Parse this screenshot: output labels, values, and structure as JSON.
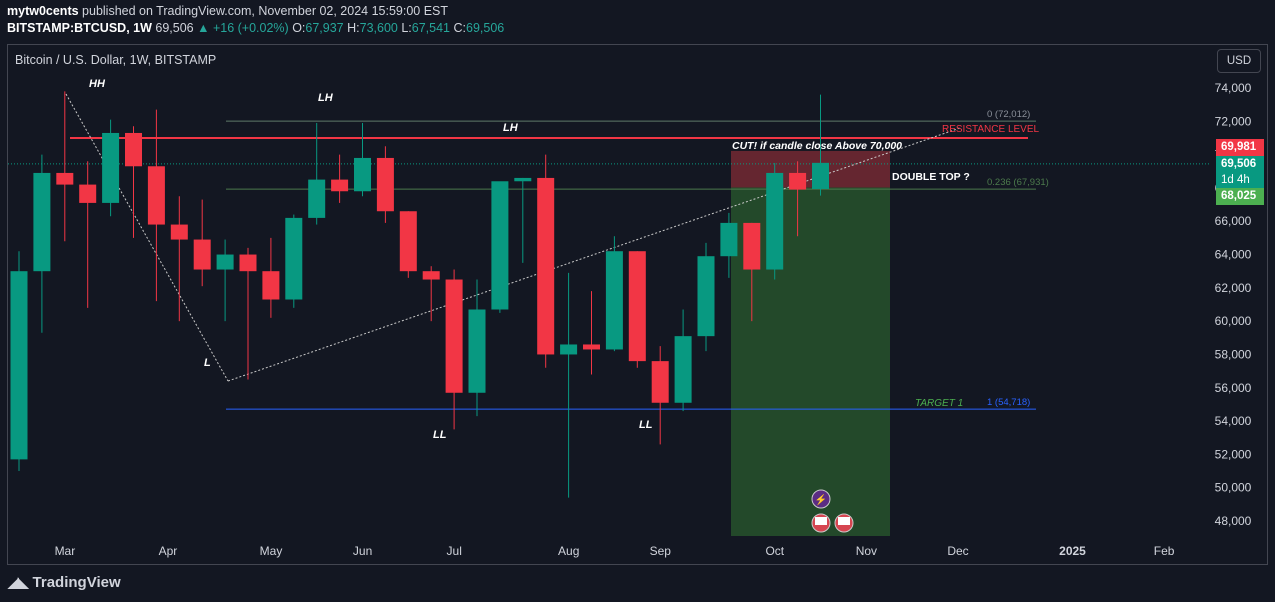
{
  "header": {
    "author": "mytw0cents",
    "published_text": "published on TradingView.com, November 02, 2024 15:59:00 EST",
    "symbol": "BITSTAMP:BTCUSD, 1W",
    "last": "69,506",
    "change": "+16 (+0.02%)",
    "o_label": "O:",
    "o": "67,937",
    "h_label": "H:",
    "h": "73,600",
    "l_label": "L:",
    "l": "67,541",
    "c_label": "C:",
    "c": "69,506"
  },
  "legend": "Bitcoin / U.S. Dollar, 1W, BITSTAMP",
  "currency_button": "USD",
  "brand": "TradingView",
  "price_tags": {
    "red_value": "69,981",
    "green_value": "69,506",
    "countdown": "1d 4h",
    "entry_value": "68,025"
  },
  "colors": {
    "background": "#131722",
    "up": "#089981",
    "down": "#f23645",
    "resistance": "#f23645",
    "target_line": "#2962ff",
    "fib_line": "#4c7a4c",
    "profit_zone": "#2a5b2e",
    "loss_zone": "#7a2a34"
  },
  "chart_data": {
    "type": "candlestick",
    "y_ticks": [
      48000,
      50000,
      52000,
      54000,
      56000,
      58000,
      60000,
      62000,
      64000,
      66000,
      68000,
      70000,
      72000,
      74000
    ],
    "y_tick_labels": [
      "48,000",
      "50,000",
      "52,000",
      "54,000",
      "56,000",
      "58,000",
      "60,000",
      "62,000",
      "64,000",
      "66,000",
      "68,000",
      "70,000",
      "72,000",
      "74,000"
    ],
    "ylim": [
      47000,
      75500
    ],
    "x_tick_labels": [
      {
        "label": "Mar",
        "week": 1
      },
      {
        "label": "Apr",
        "week": 5.5
      },
      {
        "label": "May",
        "week": 10
      },
      {
        "label": "Jun",
        "week": 14
      },
      {
        "label": "Jul",
        "week": 18
      },
      {
        "label": "Aug",
        "week": 23
      },
      {
        "label": "Sep",
        "week": 27
      },
      {
        "label": "Oct",
        "week": 32
      },
      {
        "label": "Nov",
        "week": 36
      },
      {
        "label": "Dec",
        "week": 40
      },
      {
        "label": "2025",
        "week": 45
      },
      {
        "label": "Feb",
        "week": 49
      }
    ],
    "candles": [
      {
        "o": 51700,
        "h": 64200,
        "l": 51000,
        "c": 63000
      },
      {
        "o": 63000,
        "h": 70000,
        "l": 59300,
        "c": 68900
      },
      {
        "o": 68900,
        "h": 73800,
        "l": 64800,
        "c": 68200
      },
      {
        "o": 68200,
        "h": 69600,
        "l": 60800,
        "c": 67100
      },
      {
        "o": 67100,
        "h": 72100,
        "l": 66300,
        "c": 71300
      },
      {
        "o": 71300,
        "h": 71700,
        "l": 65000,
        "c": 69300
      },
      {
        "o": 69300,
        "h": 72700,
        "l": 61200,
        "c": 65800
      },
      {
        "o": 65800,
        "h": 67500,
        "l": 60000,
        "c": 64900
      },
      {
        "o": 64900,
        "h": 67300,
        "l": 62100,
        "c": 63100
      },
      {
        "o": 63100,
        "h": 64900,
        "l": 60000,
        "c": 64000
      },
      {
        "o": 64000,
        "h": 64400,
        "l": 56500,
        "c": 63000
      },
      {
        "o": 63000,
        "h": 65000,
        "l": 60200,
        "c": 61300
      },
      {
        "o": 61300,
        "h": 66400,
        "l": 60800,
        "c": 66200
      },
      {
        "o": 66200,
        "h": 71900,
        "l": 65800,
        "c": 68500
      },
      {
        "o": 68500,
        "h": 70000,
        "l": 67100,
        "c": 67800
      },
      {
        "o": 67800,
        "h": 71900,
        "l": 67500,
        "c": 69800
      },
      {
        "o": 69800,
        "h": 70500,
        "l": 65900,
        "c": 66600
      },
      {
        "o": 66600,
        "h": 66600,
        "l": 62600,
        "c": 63000
      },
      {
        "o": 63000,
        "h": 63300,
        "l": 60000,
        "c": 62500
      },
      {
        "o": 62500,
        "h": 63100,
        "l": 53500,
        "c": 55700
      },
      {
        "o": 55700,
        "h": 62500,
        "l": 54300,
        "c": 60700
      },
      {
        "o": 60700,
        "h": 68300,
        "l": 60500,
        "c": 68400
      },
      {
        "o": 68400,
        "h": 68600,
        "l": 63500,
        "c": 68600
      },
      {
        "o": 68600,
        "h": 70000,
        "l": 57200,
        "c": 58000
      },
      {
        "o": 58000,
        "h": 62900,
        "l": 49400,
        "c": 58600
      },
      {
        "o": 58600,
        "h": 61800,
        "l": 56800,
        "c": 58300
      },
      {
        "o": 58300,
        "h": 65100,
        "l": 58200,
        "c": 64200
      },
      {
        "o": 64200,
        "h": 64200,
        "l": 57200,
        "c": 57600
      },
      {
        "o": 57600,
        "h": 58500,
        "l": 52600,
        "c": 55100
      },
      {
        "o": 55100,
        "h": 60700,
        "l": 54600,
        "c": 59100
      },
      {
        "o": 59100,
        "h": 64700,
        "l": 58200,
        "c": 63900
      },
      {
        "o": 63900,
        "h": 66500,
        "l": 62600,
        "c": 65900
      },
      {
        "o": 65900,
        "h": 65900,
        "l": 60000,
        "c": 63100
      },
      {
        "o": 63100,
        "h": 69500,
        "l": 62500,
        "c": 68900
      },
      {
        "o": 68900,
        "h": 69600,
        "l": 65100,
        "c": 67900
      },
      {
        "o": 67937,
        "h": 73600,
        "l": 67541,
        "c": 69506
      }
    ],
    "levels": {
      "resistance": 71000,
      "fib_0": 72012,
      "fib_0_236": 67931,
      "fib_1": 54718,
      "entry": 68025,
      "stop": 69981
    },
    "annotations": {
      "hh": "HH",
      "lh1": "LH",
      "lh2": "LH",
      "l": "L",
      "ll1": "LL",
      "ll2": "LL",
      "cut_note": "CUT! if candle close Above 70,000",
      "double_top": "DOUBLE TOP ?",
      "resistance_label": "RESISTANCE LEVEL",
      "target_label": "TARGET 1",
      "fib_0_label": "0 (72,012)",
      "fib_0236_label": "0.236 (67,931)",
      "fib_1_label": "1 (54,718)"
    }
  }
}
